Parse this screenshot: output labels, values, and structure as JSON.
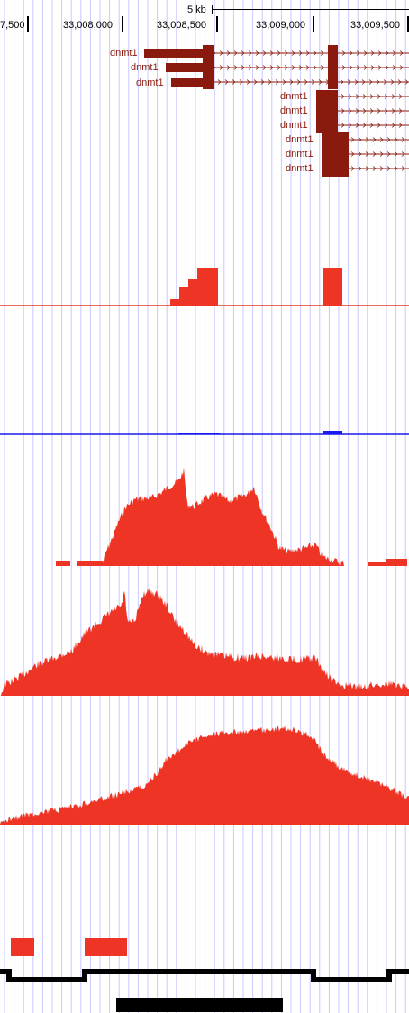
{
  "colors": {
    "grid": "#c8c8ff",
    "gene": "#8b1a0e",
    "signal": "#ee3424",
    "baseline_red": "#e83a2c",
    "baseline_blue": "#1a1aee",
    "black": "#000000"
  },
  "scale_bar": {
    "label": "5 kb"
  },
  "ruler": {
    "labels": [
      "7,500",
      "33,008,000",
      "33,008,500",
      "33,009,000",
      "33,009,500"
    ]
  },
  "genes": {
    "name": "dnmt1",
    "transcripts": [
      {
        "label": "dnmt1"
      },
      {
        "label": "dnmt1"
      },
      {
        "label": "dnmt1"
      },
      {
        "label": "dnmt1"
      },
      {
        "label": "dnmt1"
      },
      {
        "label": "dnmt1"
      },
      {
        "label": "dnmt1"
      },
      {
        "label": "dnmt1"
      },
      {
        "label": "dnmt1"
      }
    ]
  }
}
